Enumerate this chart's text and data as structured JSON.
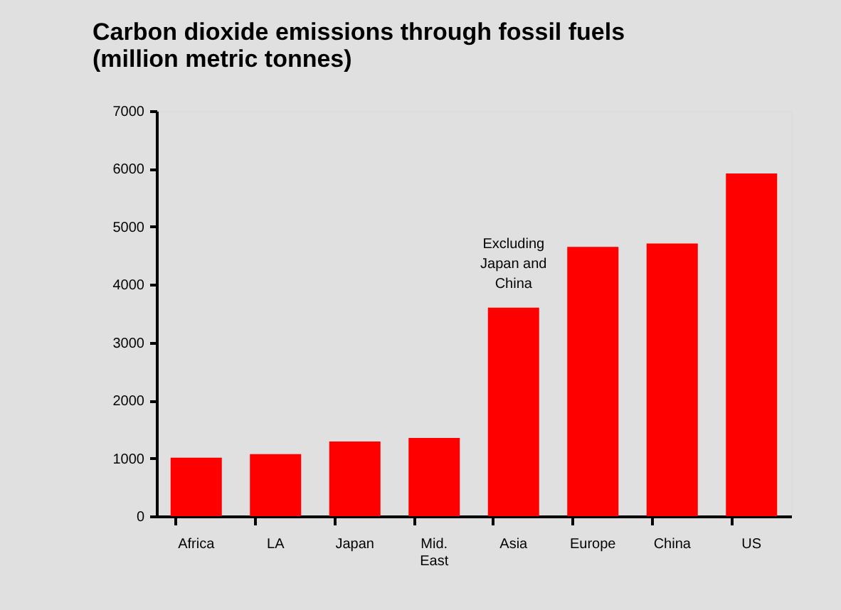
{
  "chart_data": {
    "type": "bar",
    "title": "Carbon dioxide emissions through fossil fuels (million metric tonnes)",
    "categories": [
      "Africa",
      "LA",
      "Japan",
      "Mid. East",
      "Asia",
      "Europe",
      "China",
      "US"
    ],
    "values": [
      1010,
      1070,
      1290,
      1350,
      3600,
      4650,
      4710,
      5920
    ],
    "color": "#ff0000",
    "ylim": [
      0,
      7000
    ],
    "yticks": [
      0,
      1000,
      2000,
      3000,
      4000,
      5000,
      6000,
      7000
    ],
    "annotations": [
      {
        "text": "Excluding Japan and China",
        "x": "Asia",
        "y": 3600
      }
    ]
  }
}
